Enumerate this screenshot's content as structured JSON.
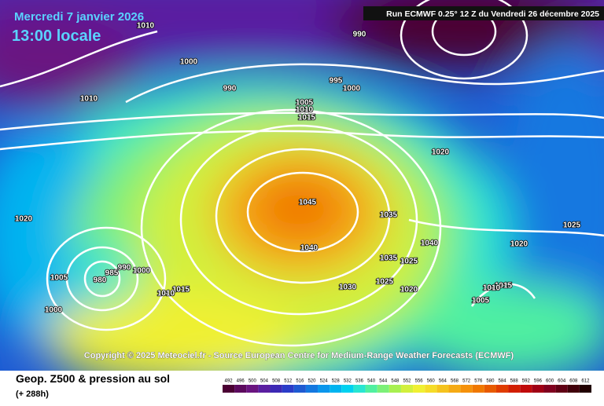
{
  "header": {
    "date": "Mercredi 7 janvier 2026",
    "time": "13:00 locale",
    "run": "Run ECMWF 0.25° 12 Z du Vendredi 26 décembre 2025"
  },
  "copyright": "Copyright © 2025 Meteociel.fr - Source European Centre for Medium-Range Weather Forecasts (ECMWF)",
  "footer": {
    "title": "Geop. Z500 & pression au sol",
    "lead": "(+ 288h)"
  },
  "isobar_labels": [
    1010,
    1000,
    990,
    995,
    1000,
    990,
    1010,
    1005,
    1010,
    1015,
    1020,
    1045,
    1040,
    1035,
    1035,
    1025,
    1040,
    1020,
    1025,
    1030,
    1020,
    1005,
    980,
    985,
    990,
    1000,
    1015,
    1010,
    1000,
    1005,
    1015,
    1010,
    1020,
    1025
  ],
  "colorbar": {
    "labels": [
      492,
      496,
      500,
      504,
      508,
      512,
      516,
      520,
      524,
      528,
      532,
      536,
      540,
      544,
      548,
      552,
      556,
      560,
      564,
      568,
      572,
      576,
      580,
      584,
      588,
      592,
      596,
      600,
      604,
      608,
      612
    ],
    "colors": [
      "#4b0033",
      "#5c0a5e",
      "#6a1480",
      "#5a1ea0",
      "#3c28b4",
      "#2a3cc8",
      "#1e5ad2",
      "#1478e0",
      "#0a96ec",
      "#00b4f0",
      "#00d2f0",
      "#28e6d2",
      "#50f0a0",
      "#7cf078",
      "#a8f050",
      "#d2f03c",
      "#f0f032",
      "#f5dc28",
      "#f5c31e",
      "#f5aa14",
      "#f5910a",
      "#f07800",
      "#e85a00",
      "#e03c00",
      "#d21e00",
      "#c00a0a",
      "#a00014",
      "#80001e",
      "#600014",
      "#40000a",
      "#200000"
    ]
  }
}
